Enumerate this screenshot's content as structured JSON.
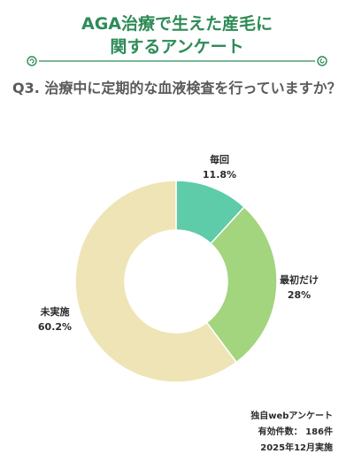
{
  "header": {
    "title_line1": "AGA治療で生えた産毛に",
    "title_line2": "関するアンケート",
    "accent_color": "#2e8b57"
  },
  "question": "Q3. 治療中に定期的な血液検査を行っていますか？",
  "chart_data": {
    "type": "pie",
    "donut": true,
    "start": "top",
    "direction": "clockwise",
    "slices": [
      {
        "label": "毎回",
        "value": 11.8,
        "value_label": "11.8%",
        "color": "#5ecba9"
      },
      {
        "label": "最初だけ",
        "value": 28,
        "value_label": "28%",
        "color": "#a3d47e"
      },
      {
        "label": "未実施",
        "value": 60.2,
        "value_label": "60.2%",
        "color": "#efe4b5"
      }
    ]
  },
  "footer": {
    "line1": "独自webアンケート",
    "line2": "有効件数： 186件",
    "line3": "2025年12月実施"
  }
}
